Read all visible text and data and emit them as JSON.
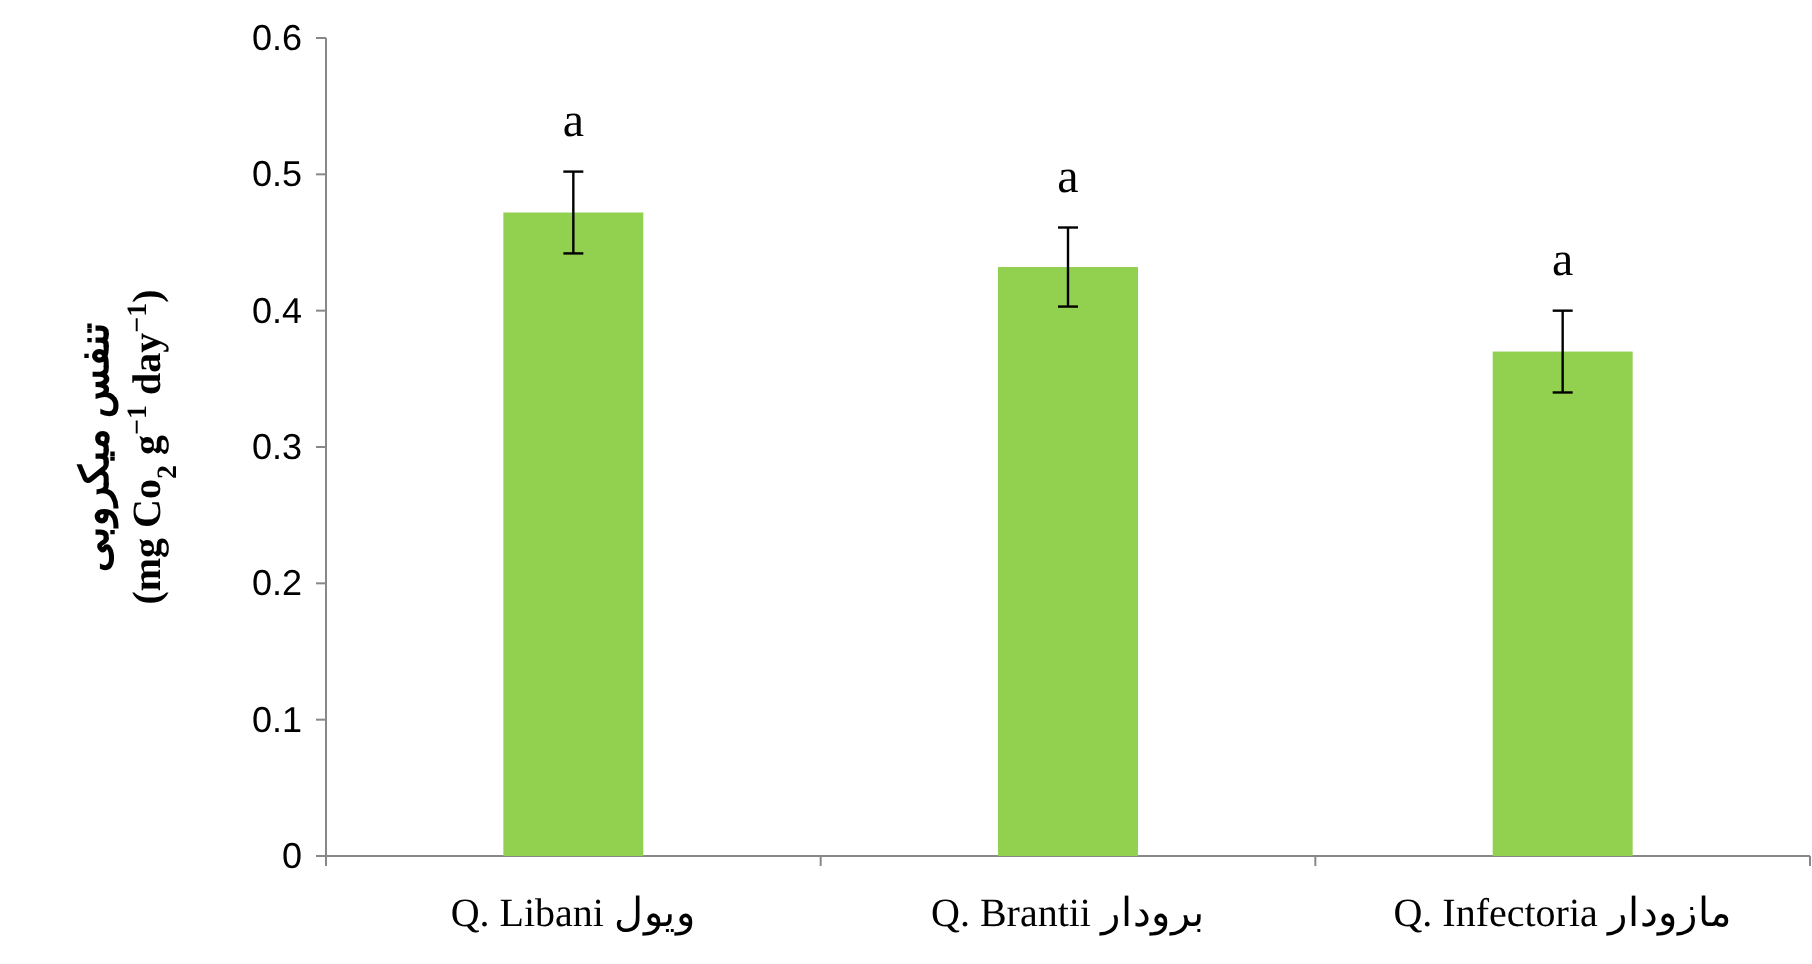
{
  "chart_data": {
    "type": "bar",
    "ylabel": "تنفس میکروبی\n(mg Co$_{2}$ g$^{−1}$ day$^{−1}$)",
    "categories": [
      "Q. Libani ویول",
      "Q. Brantii برودار",
      "Q. Infectoria مازودار"
    ],
    "values": [
      0.472,
      0.432,
      0.37
    ],
    "errors": [
      0.03,
      0.029,
      0.03
    ],
    "color": "#92d050",
    "ylim": [
      0,
      0.6
    ],
    "yticks": [
      0,
      0.1,
      0.2,
      0.3,
      0.4,
      0.5,
      0.6
    ],
    "grid": false,
    "annotations": [
      "a",
      "a",
      "a"
    ]
  }
}
